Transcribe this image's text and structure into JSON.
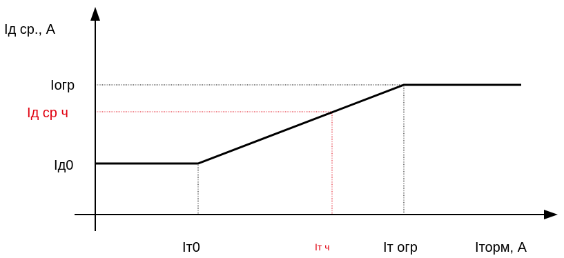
{
  "colors": {
    "curve": "#000000",
    "axis": "#000000",
    "guide_black": "#000000",
    "guide_red": "#e0000f",
    "text_red": "#e0000f"
  },
  "y_axis": {
    "label_main": "I",
    "label_sub": "д ср., А"
  },
  "x_axis": {
    "label_main": "I",
    "label_sub": "торм, А"
  },
  "y_levels": {
    "i_ogr": {
      "main": "I",
      "sub": "огр"
    },
    "i_d_sr_ch": {
      "main": "I",
      "sub": "д ср ч"
    },
    "i_d0": {
      "main": "I",
      "sub": "д0"
    }
  },
  "x_levels": {
    "i_t0": {
      "main": "I",
      "sub": "т0"
    },
    "i_t_ch": {
      "main": "I",
      "sub": "т ч"
    },
    "i_t_ogr": {
      "main": "I",
      "sub": "т огр"
    }
  }
}
